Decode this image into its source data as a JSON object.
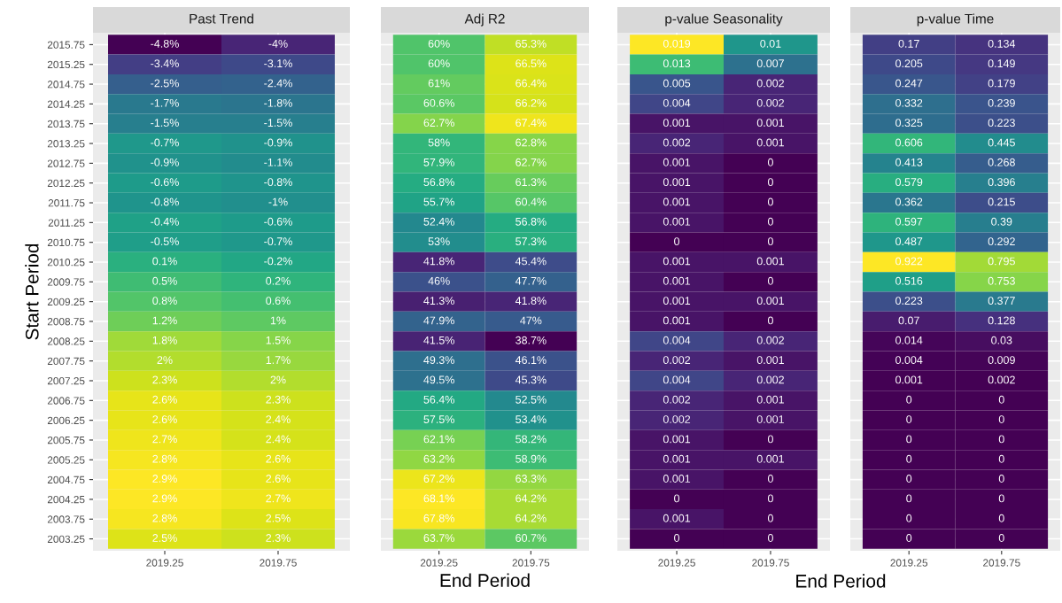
{
  "chart_data": [
    {
      "type": "heatmap",
      "title": "Past Trend",
      "ylabel": "Start Period",
      "grid": true,
      "categories": [
        "2019.25",
        "2019.75"
      ],
      "y_categories": [
        "2015.75",
        "2015.25",
        "2014.75",
        "2014.25",
        "2013.75",
        "2013.25",
        "2012.75",
        "2012.25",
        "2011.75",
        "2011.25",
        "2010.75",
        "2010.25",
        "2009.75",
        "2009.25",
        "2008.75",
        "2008.25",
        "2007.75",
        "2007.25",
        "2006.75",
        "2006.25",
        "2005.75",
        "2005.25",
        "2004.75",
        "2004.25",
        "2003.75",
        "2003.25"
      ],
      "cells": [
        [
          -4.8,
          -4
        ],
        [
          -3.4,
          -3.1
        ],
        [
          -2.5,
          -2.4
        ],
        [
          -1.7,
          -1.8
        ],
        [
          -1.5,
          -1.5
        ],
        [
          -0.7,
          -0.9
        ],
        [
          -0.9,
          -1.1
        ],
        [
          -0.6,
          -0.8
        ],
        [
          -0.8,
          -1
        ],
        [
          -0.4,
          -0.6
        ],
        [
          -0.5,
          -0.7
        ],
        [
          0.1,
          -0.2
        ],
        [
          0.5,
          0.2
        ],
        [
          0.8,
          0.6
        ],
        [
          1.2,
          1
        ],
        [
          1.8,
          1.5
        ],
        [
          2,
          1.7
        ],
        [
          2.3,
          2
        ],
        [
          2.6,
          2.3
        ],
        [
          2.6,
          2.4
        ],
        [
          2.7,
          2.4
        ],
        [
          2.8,
          2.6
        ],
        [
          2.9,
          2.6
        ],
        [
          2.9,
          2.7
        ],
        [
          2.8,
          2.5
        ],
        [
          2.5,
          2.3
        ]
      ],
      "cell_labels": [
        [
          "-4.8%",
          "-4%"
        ],
        [
          "-3.4%",
          "-3.1%"
        ],
        [
          "-2.5%",
          "-2.4%"
        ],
        [
          "-1.7%",
          "-1.8%"
        ],
        [
          "-1.5%",
          "-1.5%"
        ],
        [
          "-0.7%",
          "-0.9%"
        ],
        [
          "-0.9%",
          "-1.1%"
        ],
        [
          "-0.6%",
          "-0.8%"
        ],
        [
          "-0.8%",
          "-1%"
        ],
        [
          "-0.4%",
          "-0.6%"
        ],
        [
          "-0.5%",
          "-0.7%"
        ],
        [
          "0.1%",
          "-0.2%"
        ],
        [
          "0.5%",
          "0.2%"
        ],
        [
          "0.8%",
          "0.6%"
        ],
        [
          "1.2%",
          "1%"
        ],
        [
          "1.8%",
          "1.5%"
        ],
        [
          "2%",
          "1.7%"
        ],
        [
          "2.3%",
          "2%"
        ],
        [
          "2.6%",
          "2.3%"
        ],
        [
          "2.6%",
          "2.4%"
        ],
        [
          "2.7%",
          "2.4%"
        ],
        [
          "2.8%",
          "2.6%"
        ],
        [
          "2.9%",
          "2.6%"
        ],
        [
          "2.9%",
          "2.7%"
        ],
        [
          "2.8%",
          "2.5%"
        ],
        [
          "2.5%",
          "2.3%"
        ]
      ]
    },
    {
      "type": "heatmap",
      "title": "Adj R2",
      "xlabel": "End Period",
      "grid": true,
      "tick_labels": "x",
      "categories": [
        "2019.25",
        "2019.75"
      ],
      "y_categories": [
        "2015.75",
        "2015.25",
        "2014.75",
        "2014.25",
        "2013.75",
        "2013.25",
        "2012.75",
        "2012.25",
        "2011.75",
        "2011.25",
        "2010.75",
        "2010.25",
        "2009.75",
        "2009.25",
        "2008.75",
        "2008.25",
        "2007.75",
        "2007.25",
        "2006.75",
        "2006.25",
        "2005.75",
        "2005.25",
        "2004.75",
        "2004.25",
        "2003.75",
        "2003.25"
      ],
      "cells": [
        [
          60,
          65.3
        ],
        [
          60,
          66.5
        ],
        [
          61,
          66.4
        ],
        [
          60.6,
          66.2
        ],
        [
          62.7,
          67.4
        ],
        [
          58,
          62.8
        ],
        [
          57.9,
          62.7
        ],
        [
          56.8,
          61.3
        ],
        [
          55.7,
          60.4
        ],
        [
          52.4,
          56.8
        ],
        [
          53,
          57.3
        ],
        [
          41.8,
          45.4
        ],
        [
          46,
          47.7
        ],
        [
          41.3,
          41.8
        ],
        [
          47.9,
          47
        ],
        [
          41.5,
          38.7
        ],
        [
          49.3,
          46.1
        ],
        [
          49.5,
          45.3
        ],
        [
          56.4,
          52.5
        ],
        [
          57.5,
          53.4
        ],
        [
          62.1,
          58.2
        ],
        [
          63.2,
          58.9
        ],
        [
          67.2,
          63.3
        ],
        [
          68.1,
          64.2
        ],
        [
          67.8,
          64.2
        ],
        [
          63.7,
          60.7
        ]
      ],
      "cell_labels": [
        [
          "60%",
          "65.3%"
        ],
        [
          "60%",
          "66.5%"
        ],
        [
          "61%",
          "66.4%"
        ],
        [
          "60.6%",
          "66.2%"
        ],
        [
          "62.7%",
          "67.4%"
        ],
        [
          "58%",
          "62.8%"
        ],
        [
          "57.9%",
          "62.7%"
        ],
        [
          "56.8%",
          "61.3%"
        ],
        [
          "55.7%",
          "60.4%"
        ],
        [
          "52.4%",
          "56.8%"
        ],
        [
          "53%",
          "57.3%"
        ],
        [
          "41.8%",
          "45.4%"
        ],
        [
          "46%",
          "47.7%"
        ],
        [
          "41.3%",
          "41.8%"
        ],
        [
          "47.9%",
          "47%"
        ],
        [
          "41.5%",
          "38.7%"
        ],
        [
          "49.3%",
          "46.1%"
        ],
        [
          "49.5%",
          "45.3%"
        ],
        [
          "56.4%",
          "52.5%"
        ],
        [
          "57.5%",
          "53.4%"
        ],
        [
          "62.1%",
          "58.2%"
        ],
        [
          "63.2%",
          "58.9%"
        ],
        [
          "67.2%",
          "63.3%"
        ],
        [
          "68.1%",
          "64.2%"
        ],
        [
          "67.8%",
          "64.2%"
        ],
        [
          "63.7%",
          "60.7%"
        ]
      ]
    },
    {
      "type": "heatmap",
      "title": "p-value Seasonality",
      "xlabel": "End Period",
      "grid": true,
      "tick_labels": "x",
      "data_labels": true,
      "categories": [
        "2019.25",
        "2019.75"
      ],
      "y_categories": [
        "2015.75",
        "2015.25",
        "2014.75",
        "2014.25",
        "2013.75",
        "2013.25",
        "2012.75",
        "2012.25",
        "2011.75",
        "2011.25",
        "2010.75",
        "2010.25",
        "2009.75",
        "2009.25",
        "2008.75",
        "2008.25",
        "2007.75",
        "2007.25",
        "2006.75",
        "2006.25",
        "2005.75",
        "2005.25",
        "2004.75",
        "2004.25",
        "2003.75",
        "2003.25"
      ],
      "cells": [
        [
          0.019,
          0.01
        ],
        [
          0.013,
          0.007
        ],
        [
          0.005,
          0.002
        ],
        [
          0.004,
          0.002
        ],
        [
          0.001,
          0.001
        ],
        [
          0.002,
          0.001
        ],
        [
          0.001,
          0
        ],
        [
          0.001,
          0
        ],
        [
          0.001,
          0
        ],
        [
          0.001,
          0
        ],
        [
          0,
          0
        ],
        [
          0.001,
          0.001
        ],
        [
          0.001,
          0
        ],
        [
          0.001,
          0.001
        ],
        [
          0.001,
          0
        ],
        [
          0.004,
          0.002
        ],
        [
          0.002,
          0.001
        ],
        [
          0.004,
          0.002
        ],
        [
          0.002,
          0.001
        ],
        [
          0.002,
          0.001
        ],
        [
          0.001,
          0
        ],
        [
          0.001,
          0.001
        ],
        [
          0.001,
          0
        ],
        [
          0,
          0
        ],
        [
          0.001,
          0
        ],
        [
          0,
          0
        ]
      ]
    },
    {
      "type": "heatmap",
      "title": "p-value Time",
      "grid": true,
      "tick_labels": "x",
      "data_labels": true,
      "categories": [
        "2019.25",
        "2019.75"
      ],
      "y_categories": [
        "2015.75",
        "2015.25",
        "2014.75",
        "2014.25",
        "2013.75",
        "2013.25",
        "2012.75",
        "2012.25",
        "2011.75",
        "2011.25",
        "2010.75",
        "2010.25",
        "2009.75",
        "2009.25",
        "2008.75",
        "2008.25",
        "2007.75",
        "2007.25",
        "2006.75",
        "2006.25",
        "2005.75",
        "2005.25",
        "2004.75",
        "2004.25",
        "2003.75",
        "2003.25"
      ],
      "cells": [
        [
          0.17,
          0.134
        ],
        [
          0.205,
          0.149
        ],
        [
          0.247,
          0.179
        ],
        [
          0.332,
          0.239
        ],
        [
          0.325,
          0.223
        ],
        [
          0.606,
          0.445
        ],
        [
          0.413,
          0.268
        ],
        [
          0.579,
          0.396
        ],
        [
          0.362,
          0.215
        ],
        [
          0.597,
          0.39
        ],
        [
          0.487,
          0.292
        ],
        [
          0.922,
          0.795
        ],
        [
          0.516,
          0.753
        ],
        [
          0.223,
          0.377
        ],
        [
          0.07,
          0.128
        ],
        [
          0.014,
          0.03
        ],
        [
          0.004,
          0.009
        ],
        [
          0.001,
          0.002
        ],
        [
          0,
          0
        ],
        [
          0,
          0
        ],
        [
          0,
          0
        ],
        [
          0,
          0
        ],
        [
          0,
          0
        ],
        [
          0,
          0
        ],
        [
          0,
          0
        ],
        [
          0,
          0
        ]
      ]
    }
  ]
}
